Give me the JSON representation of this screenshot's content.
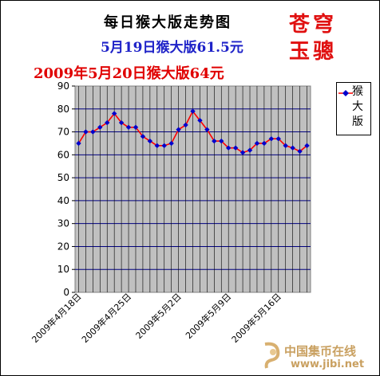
{
  "header": {
    "title": "每日猴大版走势图",
    "subtitle1": "5月19日猴大版61.5元",
    "subtitle2": "2009年5月20日猴大版64元",
    "author_line1": "苍穹",
    "author_line2": "玉骢"
  },
  "watermark": {
    "name": "中国集币在线",
    "url": "www.jibi.net"
  },
  "colors": {
    "plot_bg": "#c0c0c0",
    "grid": "#000080",
    "line": "#ff0000",
    "marker": "#0000cc",
    "title_blue": "#1e22c8",
    "title_red": "#e00000"
  },
  "chart_data": {
    "type": "line",
    "title": "每日猴大版走势图",
    "xlabel": "",
    "ylabel": "",
    "ylim": [
      0,
      90
    ],
    "yticks": [
      0,
      10,
      20,
      30,
      40,
      50,
      60,
      70,
      80,
      90
    ],
    "grid": true,
    "legend_position": "right",
    "x_tick_labels": [
      "2009年4月18日",
      "2009年4月25日",
      "2009年5月2日",
      "2009年5月9日",
      "2009年5月16日"
    ],
    "x": [
      "4月18日",
      "4月19日",
      "4月20日",
      "4月21日",
      "4月22日",
      "4月23日",
      "4月24日",
      "4月25日",
      "4月26日",
      "4月27日",
      "4月28日",
      "4月29日",
      "4月30日",
      "5月1日",
      "5月2日",
      "5月3日",
      "5月4日",
      "5月5日",
      "5月6日",
      "5月7日",
      "5月8日",
      "5月9日",
      "5月10日",
      "5月11日",
      "5月12日",
      "5月13日",
      "5月14日",
      "5月15日",
      "5月16日",
      "5月17日",
      "5月18日",
      "5月19日",
      "5月20日"
    ],
    "series": [
      {
        "name": "猴大版",
        "values": [
          65,
          70,
          70,
          72,
          74,
          78,
          74,
          72,
          72,
          68,
          66,
          64,
          64,
          65,
          71,
          73,
          79,
          75,
          71,
          66,
          66,
          63,
          63,
          61,
          62,
          65,
          65,
          67,
          67,
          64,
          63,
          61.5,
          64
        ]
      }
    ]
  }
}
